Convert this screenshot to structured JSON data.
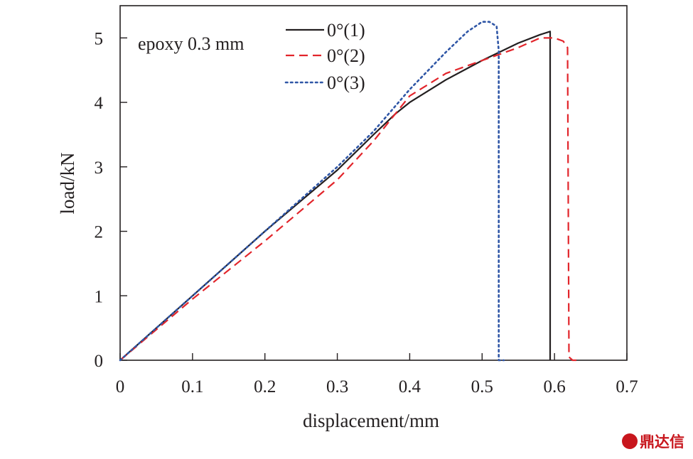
{
  "chart_data": {
    "type": "line",
    "xlabel": "displacement/mm",
    "ylabel": "load/kN",
    "xlim": [
      0,
      0.7
    ],
    "ylim": [
      0,
      5.5
    ],
    "x_ticks": [
      "0",
      "0.1",
      "0.2",
      "0.3",
      "0.4",
      "0.5",
      "0.6",
      "0.7"
    ],
    "y_ticks": [
      "0",
      "1",
      "2",
      "3",
      "4",
      "5"
    ],
    "grid": false,
    "legend_position": "top-center",
    "annotation": "epoxy 0.3 mm",
    "series": [
      {
        "name": "0°(1)",
        "color": "#231f20",
        "dash": "solid",
        "x": [
          0.0,
          0.1,
          0.2,
          0.3,
          0.35,
          0.38,
          0.4,
          0.45,
          0.5,
          0.55,
          0.58,
          0.594,
          0.594,
          0.594
        ],
        "y": [
          0.0,
          1.0,
          2.0,
          2.95,
          3.5,
          3.82,
          4.0,
          4.35,
          4.65,
          4.92,
          5.05,
          5.1,
          2.5,
          0.0
        ]
      },
      {
        "name": "0°(2)",
        "color": "#e2252b",
        "dash": "dashed",
        "x": [
          0.0,
          0.1,
          0.2,
          0.3,
          0.35,
          0.4,
          0.45,
          0.5,
          0.55,
          0.58,
          0.6,
          0.612,
          0.618,
          0.62,
          0.625,
          0.632
        ],
        "y": [
          0.0,
          0.95,
          1.85,
          2.8,
          3.4,
          4.1,
          4.45,
          4.65,
          4.85,
          5.0,
          5.0,
          4.95,
          4.85,
          0.05,
          0.0,
          0.0
        ]
      },
      {
        "name": "0°(3)",
        "color": "#2f56a6",
        "dash": "dotted",
        "x": [
          0.0,
          0.1,
          0.2,
          0.3,
          0.35,
          0.4,
          0.45,
          0.48,
          0.5,
          0.51,
          0.52,
          0.523,
          0.523,
          0.53
        ],
        "y": [
          0.0,
          1.0,
          2.0,
          3.0,
          3.55,
          4.2,
          4.78,
          5.1,
          5.25,
          5.25,
          5.18,
          4.8,
          0.0,
          0.0
        ]
      }
    ]
  },
  "watermark": "鼎达信"
}
